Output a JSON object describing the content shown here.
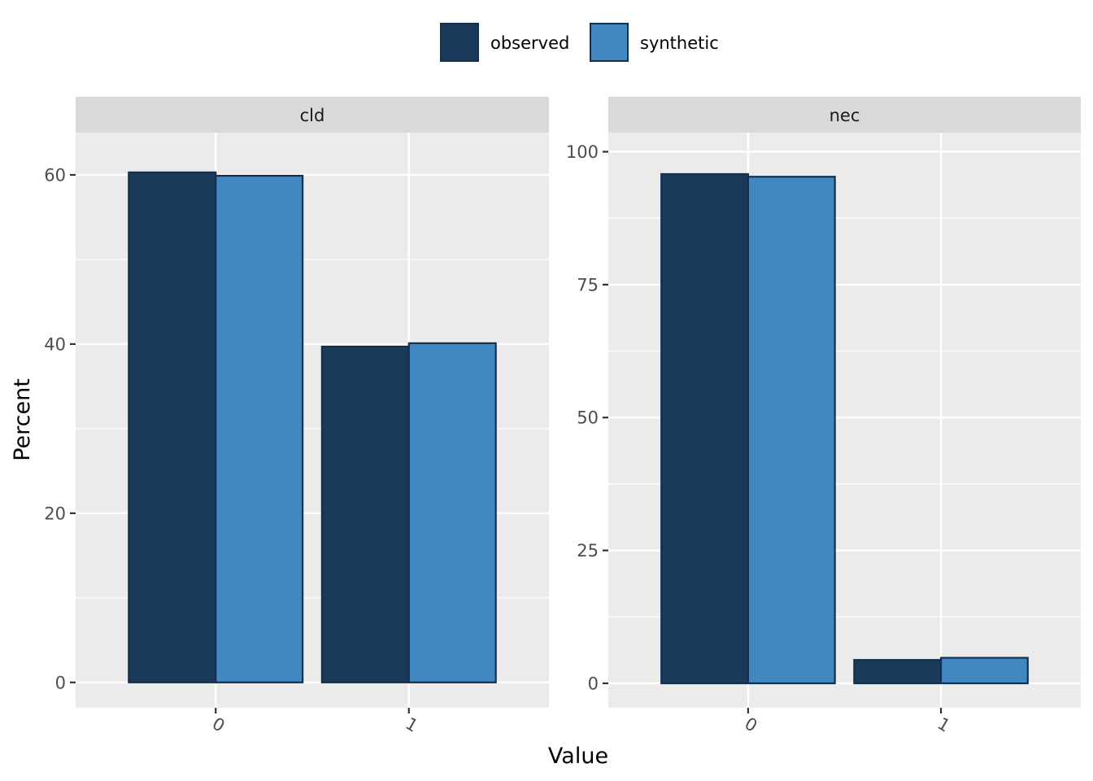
{
  "chart_data": {
    "type": "bar",
    "xlabel": "Value",
    "ylabel": "Percent",
    "legend": {
      "position": "top",
      "entries": [
        {
          "name": "observed",
          "color": "#1b3a5a"
        },
        {
          "name": "synthetic",
          "color": "#4187c1"
        }
      ]
    },
    "bar_outline_color": "#14304f",
    "panel_background": "#ebebeb",
    "strip_background": "#d9d9d9",
    "grid": true,
    "panels": [
      {
        "title": "cld",
        "categories": [
          "0",
          "1"
        ],
        "series": [
          {
            "name": "observed",
            "values": [
              60.3,
              39.7
            ]
          },
          {
            "name": "synthetic",
            "values": [
              59.9,
              40.1
            ]
          }
        ],
        "ylim": [
          -3,
          65
        ],
        "yticks": [
          0,
          20,
          40,
          60
        ],
        "ytick_labels": [
          "0",
          "20",
          "40",
          "60"
        ]
      },
      {
        "title": "nec",
        "categories": [
          "0",
          "1"
        ],
        "series": [
          {
            "name": "observed",
            "values": [
              95.8,
              4.4
            ]
          },
          {
            "name": "synthetic",
            "values": [
              95.3,
              4.8
            ]
          }
        ],
        "ylim": [
          -4.6,
          103.6
        ],
        "yticks": [
          0,
          25,
          50,
          75,
          100
        ],
        "ytick_labels": [
          "0",
          "25",
          "50",
          "75",
          "100"
        ]
      }
    ]
  }
}
